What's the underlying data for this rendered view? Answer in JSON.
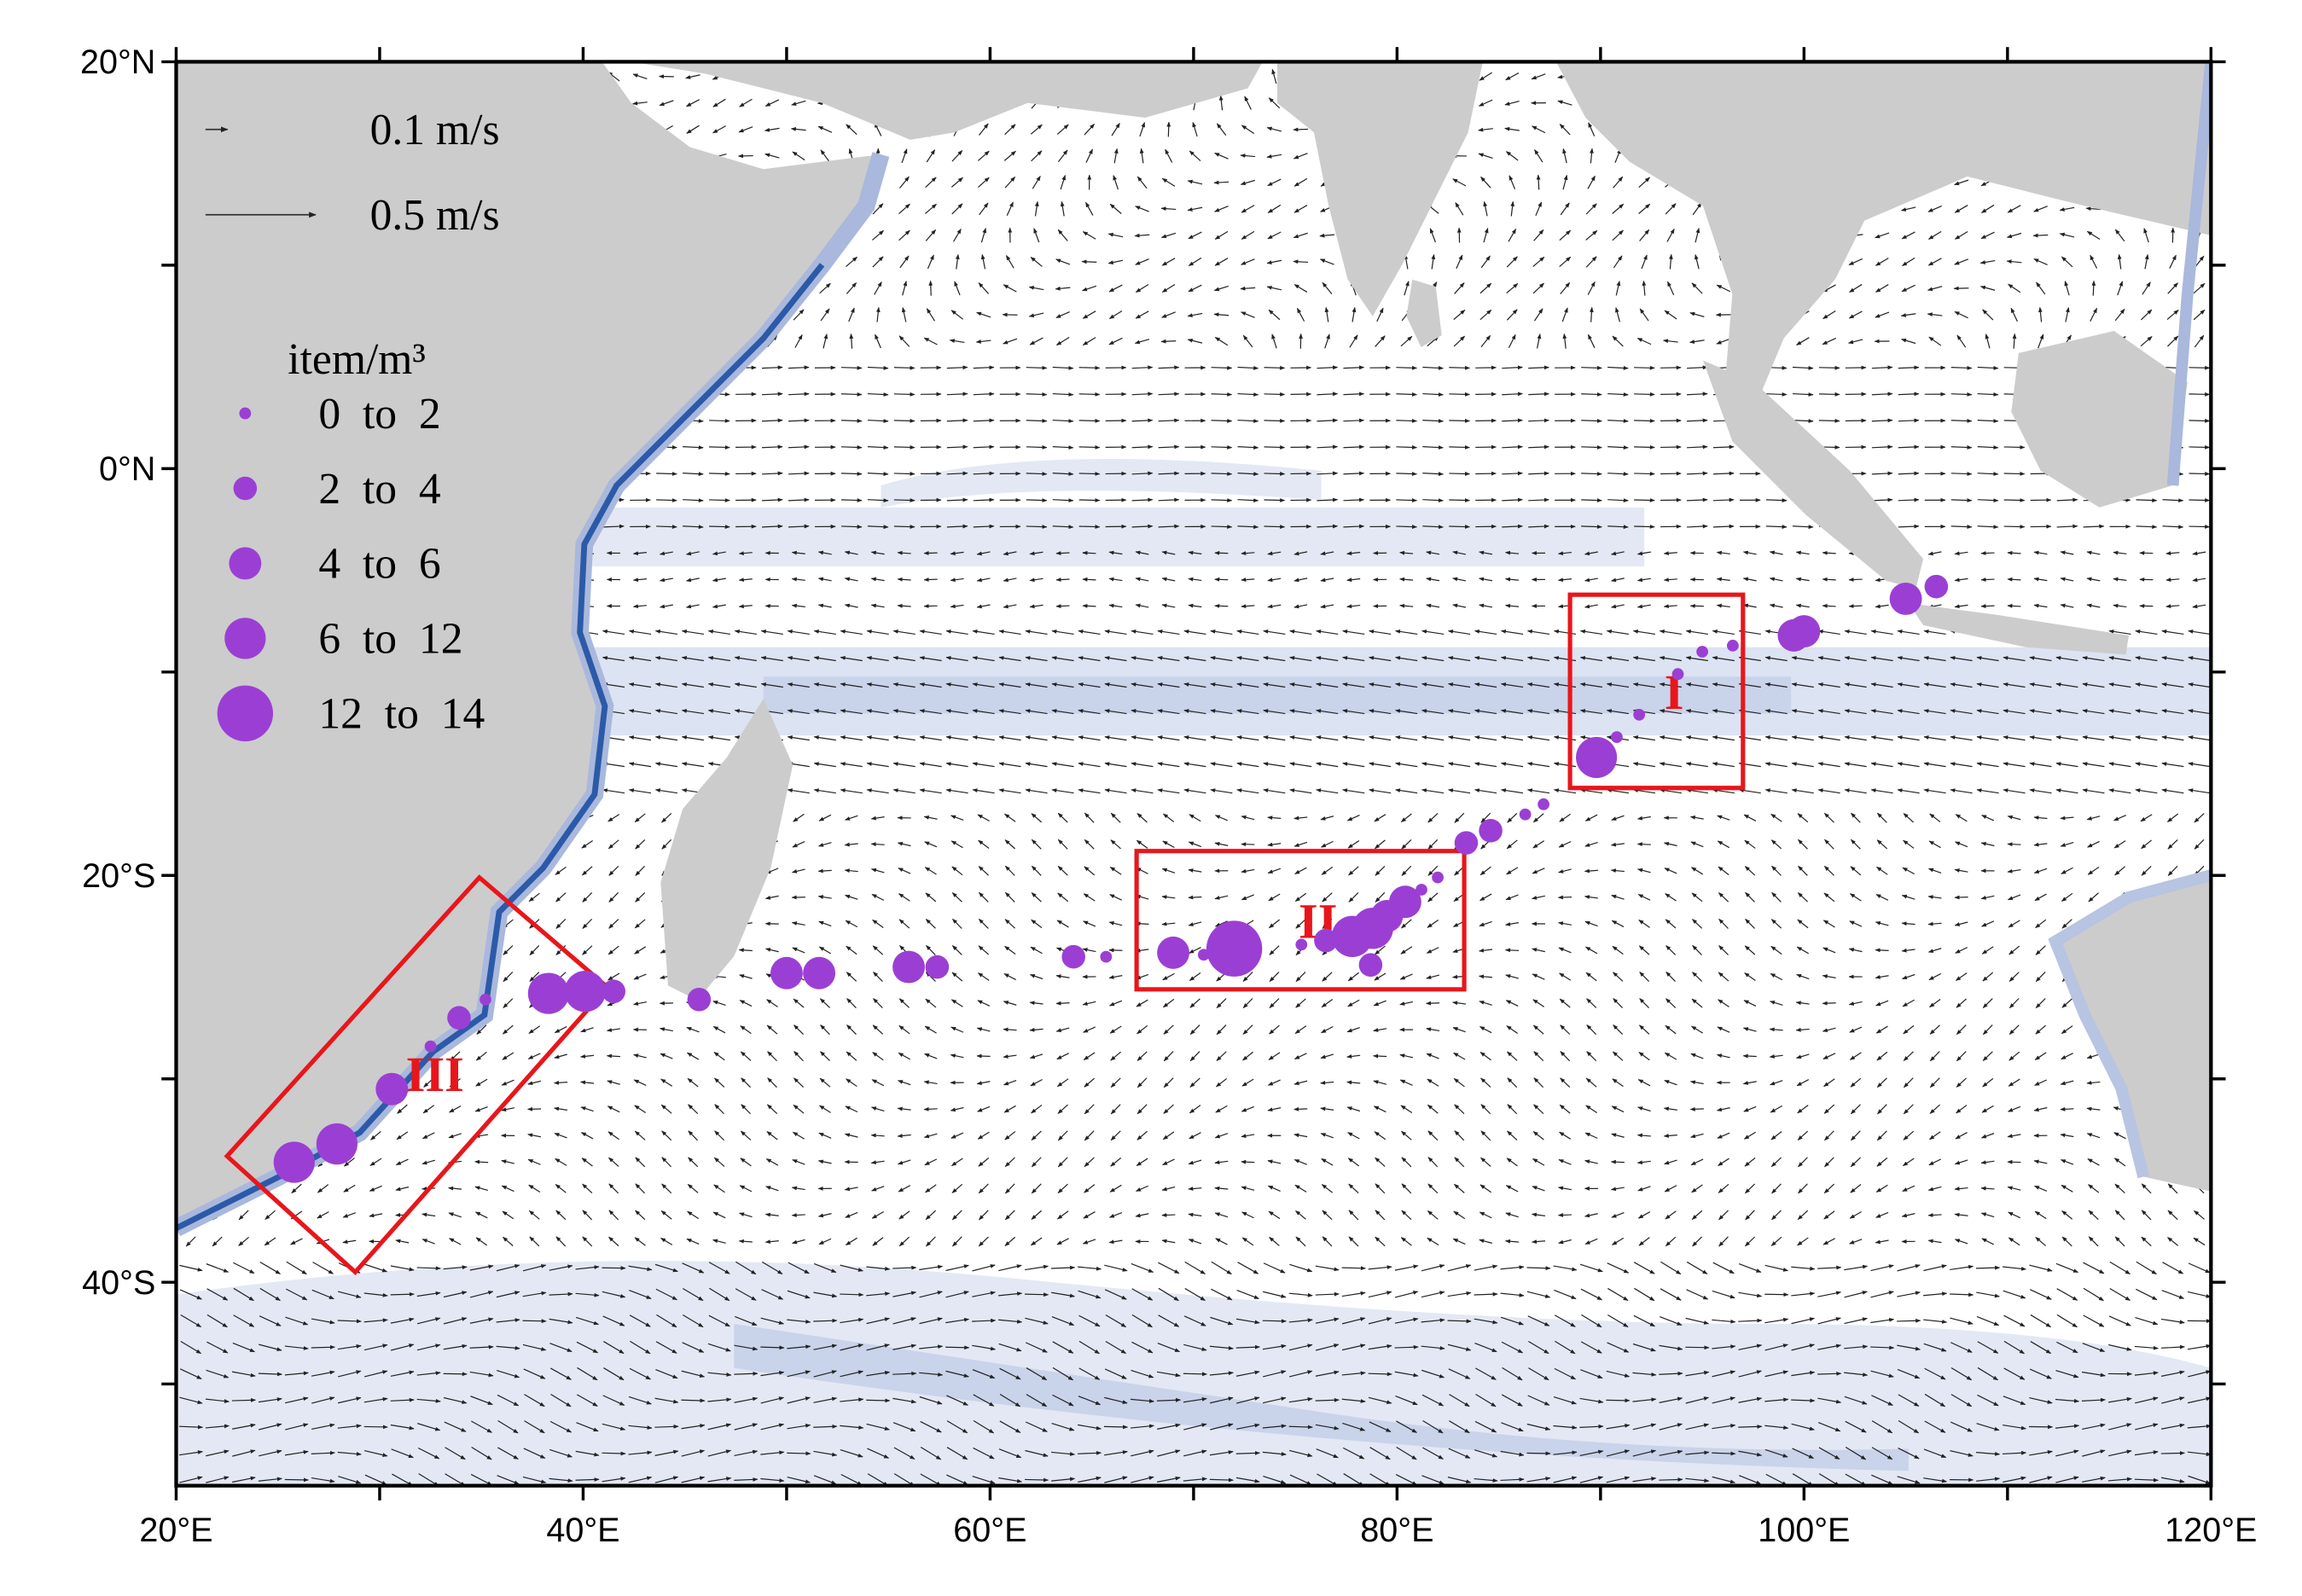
{
  "chart_data": {
    "type": "map",
    "xlim": [
      20,
      120
    ],
    "ylim": [
      -50,
      20
    ],
    "xticks": [
      {
        "value": 20,
        "label": "20°E"
      },
      {
        "value": 40,
        "label": "40°E"
      },
      {
        "value": 60,
        "label": "60°E"
      },
      {
        "value": 80,
        "label": "80°E"
      },
      {
        "value": 100,
        "label": "100°E"
      },
      {
        "value": 120,
        "label": "120°E"
      }
    ],
    "yticks": [
      {
        "value": 20,
        "label": "20°N"
      },
      {
        "value": 0,
        "label": "0°N"
      },
      {
        "value": -20,
        "label": "20°S"
      },
      {
        "value": -40,
        "label": "40°S"
      }
    ],
    "color": "#9b3fd4",
    "x": [
      106.5,
      105,
      100,
      99.5,
      96.5,
      95,
      93.8,
      91.9,
      90.8,
      89.8,
      87.2,
      86.3,
      84.6,
      83.4,
      82,
      81.2,
      80.4,
      79.5,
      78.8,
      77.8,
      76.5,
      75.3,
      78.7,
      72,
      70.5,
      69,
      65.7,
      64.1,
      57.4,
      56,
      51.6,
      50,
      45.7,
      41.5,
      40.1,
      38.3,
      35.2,
      33.9,
      32.5,
      30.6,
      27.9,
      25.8
    ],
    "y": [
      -5.8,
      -6.4,
      -8,
      -8.2,
      -8.7,
      -9,
      -10.1,
      -12.1,
      -13.2,
      -14.2,
      -16.5,
      -17,
      -17.8,
      -18.4,
      -20.1,
      -20.7,
      -21.3,
      -22,
      -22.6,
      -23,
      -23.2,
      -23.4,
      -24.4,
      -23.6,
      -23.9,
      -23.8,
      -24,
      -24,
      -24.5,
      -24.5,
      -24.8,
      -24.8,
      -26.1,
      -25.7,
      -25.7,
      -25.8,
      -26.1,
      -27,
      -28.4,
      -30.5,
      -33.2,
      -34.1
    ],
    "values": [
      3,
      5,
      5,
      5,
      1,
      1,
      1,
      1,
      1,
      8,
      1,
      1,
      3,
      3,
      1,
      1,
      5,
      5,
      8,
      8,
      3,
      1,
      3,
      13,
      1,
      5,
      1,
      3,
      3,
      5,
      5,
      5,
      3,
      3,
      8,
      8,
      1,
      3,
      1,
      5,
      8,
      8
    ],
    "size_bins": [
      0,
      2,
      4,
      6,
      12,
      14
    ],
    "legend": {
      "title": "item/m³",
      "labels": [
        "0  to  2",
        "2  to  4",
        "4  to  6",
        "6  to  12",
        "12  to  14"
      ]
    },
    "vector_legend": [
      {
        "label": "0.1 m/s",
        "speed": 0.1
      },
      {
        "label": "0.5 m/s",
        "speed": 0.5
      }
    ],
    "boxes": [
      {
        "label": "I",
        "color": "#e8161b",
        "lon": [
          88.5,
          97,
          97,
          88.5
        ],
        "lat": [
          -6.2,
          -6.2,
          -15.7,
          -15.7
        ]
      },
      {
        "label": "II",
        "color": "#e8161b",
        "lon": [
          67.2,
          83.3,
          83.3,
          67.2
        ],
        "lat": [
          -18.8,
          -18.8,
          -25.6,
          -25.6
        ]
      },
      {
        "label": "III",
        "color": "#e8161b",
        "lon": [
          22.5,
          34.9,
          41.2,
          28.8
        ],
        "lat": [
          -33.8,
          -20.1,
          -25.5,
          -39.5
        ]
      }
    ]
  }
}
